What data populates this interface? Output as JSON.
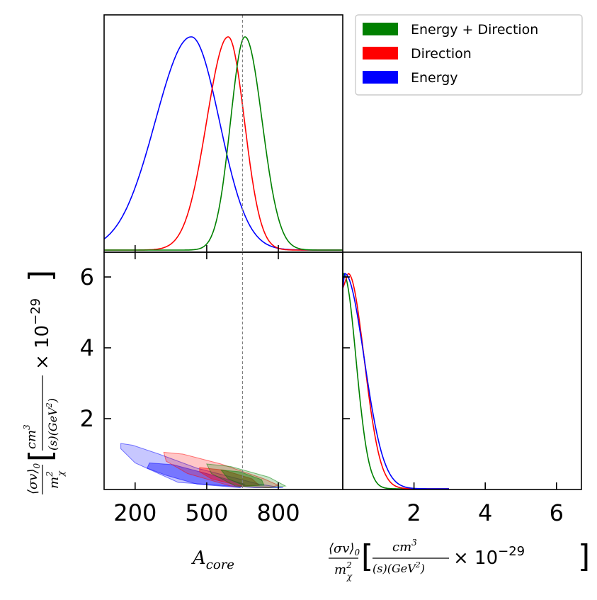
{
  "chart_data": {
    "type": "corner-plot",
    "true_value_A_core": 650,
    "parameters": [
      "A_core",
      "sigma_v_over_m2"
    ],
    "legend": {
      "placement": "top-right",
      "entries": [
        {
          "label": "Energy + Direction",
          "color": "#008000"
        },
        {
          "label": "Direction",
          "color": "#ff0000"
        },
        {
          "label": "Energy",
          "color": "#0000ff"
        }
      ]
    },
    "panels": {
      "A_core_marginal": {
        "x_range": [
          70,
          1070
        ],
        "series": [
          {
            "name": "Energy",
            "color": "#0000ff",
            "mode": 435,
            "sigma_left": 150,
            "sigma_right": 118
          },
          {
            "name": "Direction",
            "color": "#ff0000",
            "mode": 590,
            "sigma_left": 90,
            "sigma_right": 68
          },
          {
            "name": "Energy + Direction",
            "color": "#008000",
            "mode": 660,
            "sigma_left": 60,
            "sigma_right": 72
          }
        ]
      },
      "joint": {
        "x_range": [
          70,
          1070
        ],
        "y_range": [
          0,
          6.7
        ],
        "x_ticks": [
          {
            "value": 200,
            "label": "200"
          },
          {
            "value": 500,
            "label": "500"
          },
          {
            "value": 800,
            "label": "800"
          }
        ],
        "y_ticks": [
          {
            "value": 2,
            "label": "2"
          },
          {
            "value": 4,
            "label": "4"
          },
          {
            "value": 6,
            "label": "6"
          }
        ],
        "contours": [
          {
            "name": "Energy",
            "color": "#0000ff",
            "level": "outer",
            "points": [
              [
                140,
                1.3
              ],
              [
                190,
                1.25
              ],
              [
                300,
                1.0
              ],
              [
                460,
                0.6
              ],
              [
                720,
                0.15
              ],
              [
                820,
                0.05
              ],
              [
                700,
                0.05
              ],
              [
                380,
                0.2
              ],
              [
                200,
                0.75
              ],
              [
                140,
                1.15
              ]
            ]
          },
          {
            "name": "Energy",
            "color": "#0000ff",
            "level": "inner",
            "points": [
              [
                260,
                0.75
              ],
              [
                360,
                0.7
              ],
              [
                500,
                0.45
              ],
              [
                660,
                0.15
              ],
              [
                640,
                0.05
              ],
              [
                460,
                0.15
              ],
              [
                330,
                0.4
              ],
              [
                250,
                0.6
              ]
            ]
          },
          {
            "name": "Direction",
            "color": "#ff0000",
            "level": "outer",
            "points": [
              [
                320,
                1.05
              ],
              [
                400,
                1.0
              ],
              [
                560,
                0.72
              ],
              [
                740,
                0.3
              ],
              [
                800,
                0.12
              ],
              [
                760,
                0.05
              ],
              [
                600,
                0.1
              ],
              [
                420,
                0.45
              ],
              [
                330,
                0.8
              ]
            ]
          },
          {
            "name": "Direction",
            "color": "#ff0000",
            "level": "inner",
            "points": [
              [
                470,
                0.62
              ],
              [
                570,
                0.55
              ],
              [
                690,
                0.3
              ],
              [
                720,
                0.12
              ],
              [
                640,
                0.1
              ],
              [
                520,
                0.3
              ],
              [
                470,
                0.5
              ]
            ]
          },
          {
            "name": "Energy + Direction",
            "color": "#008000",
            "level": "outer",
            "points": [
              [
                500,
                0.72
              ],
              [
                600,
                0.65
              ],
              [
                760,
                0.35
              ],
              [
                830,
                0.1
              ],
              [
                760,
                0.05
              ],
              [
                620,
                0.1
              ],
              [
                520,
                0.45
              ]
            ]
          },
          {
            "name": "Energy + Direction",
            "color": "#008000",
            "level": "inner",
            "points": [
              [
                560,
                0.55
              ],
              [
                640,
                0.5
              ],
              [
                730,
                0.28
              ],
              [
                740,
                0.12
              ],
              [
                660,
                0.1
              ],
              [
                590,
                0.3
              ]
            ]
          }
        ]
      },
      "sigma_v_marginal": {
        "x_range": [
          0,
          6.7
        ],
        "x_ticks": [
          {
            "value": 2,
            "label": "2"
          },
          {
            "value": 4,
            "label": "4"
          },
          {
            "value": 6,
            "label": "6"
          }
        ],
        "series": [
          {
            "name": "Energy + Direction",
            "color": "#008000",
            "mode": 0.02,
            "sigma": 0.35
          },
          {
            "name": "Direction",
            "color": "#ff0000",
            "mode": 0.15,
            "sigma": 0.45
          },
          {
            "name": "Energy",
            "color": "#0000ff",
            "mode": 0.05,
            "sigma": 0.55
          }
        ]
      }
    },
    "labels": {
      "x_core_main": "A",
      "x_core_sub": "core",
      "sigma_num_main": "⟨σv⟩",
      "sigma_num_sub": "0",
      "sigma_den_main": "m",
      "sigma_den_sup": "2",
      "sigma_den_sub": "χ",
      "unit_num_main": "cm",
      "unit_num_sup": "3",
      "unit_den_left": "(s)(GeV",
      "unit_den_sup": "2",
      "unit_den_right": ")",
      "scale_times": "× 10",
      "scale_exp": "−29"
    }
  }
}
